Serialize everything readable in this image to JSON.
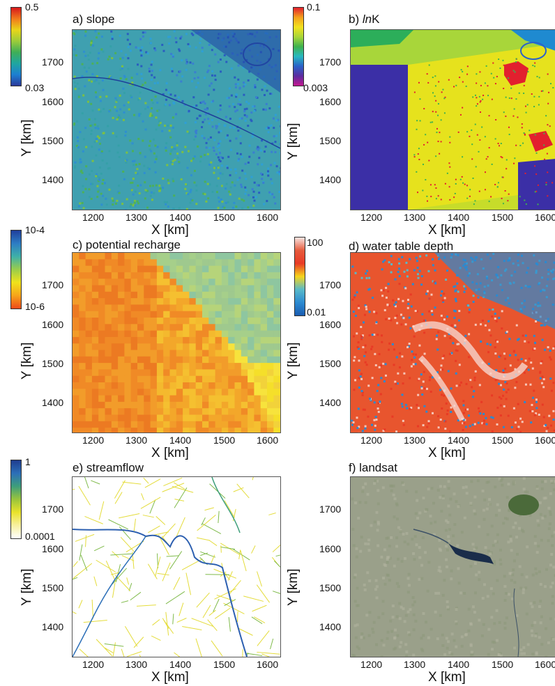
{
  "figure": {
    "panels": [
      {
        "id": "a",
        "title_prefix": "a) ",
        "title_main": "slope",
        "title_suffix": "",
        "cb_max": "0.5",
        "cb_min": "0.03",
        "xlabel": "X [km]",
        "ylabel": "Y [km]",
        "colors": {
          "bar": [
            "#d7191c",
            "#f17a1c",
            "#e8d51a",
            "#9ccc3a",
            "#3fae57",
            "#1fa6a0",
            "#1d7fd1",
            "#2b3a9b"
          ],
          "map_base": "#3fa0b0"
        }
      },
      {
        "id": "b",
        "title_prefix": "b) ",
        "title_main": "ln",
        "title_suffix": "K",
        "cb_max": "0.1",
        "cb_min": "0.003",
        "xlabel": "X [km]",
        "ylabel": "Y [km]",
        "colors": {
          "bar": [
            "#e2202e",
            "#f4a11c",
            "#f2e21e",
            "#a8d63a",
            "#3fb24e",
            "#28b8c0",
            "#2b62c8",
            "#5b2da0",
            "#c2188f"
          ],
          "map_base": "#c7dc2a"
        }
      },
      {
        "id": "c",
        "title_prefix": "c) ",
        "title_main": "potential recharge",
        "title_suffix": "",
        "cb_max": "10-4",
        "cb_min": "10-6",
        "xlabel": "X [km]",
        "ylabel": "Y [km]",
        "colors": {
          "bar": [
            "#1f3f9c",
            "#2d7dc4",
            "#3fb0a8",
            "#9acd4b",
            "#f0e21a",
            "#f6a41a",
            "#ed4a1a"
          ],
          "map_base": "#f3b427"
        }
      },
      {
        "id": "d",
        "title_prefix": "d) ",
        "title_main": "water table depth",
        "title_suffix": "",
        "cb_max": "100",
        "cb_min": "0.01",
        "xlabel": "X [km]",
        "ylabel": "Y [km]",
        "colors": {
          "bar": [
            "#f8e4e0",
            "#e65a3c",
            "#e83a25",
            "#f6d51a",
            "#58b9c8",
            "#2b8ad1",
            "#1a5cb0"
          ],
          "map_base": "#e8552e"
        }
      },
      {
        "id": "e",
        "title_prefix": "e) ",
        "title_main": "streamflow",
        "title_suffix": "",
        "cb_max": "1",
        "cb_min": "0.0001",
        "xlabel": "X [km]",
        "ylabel": "Y [km]",
        "colors": {
          "bar": [
            "#1f3d8f",
            "#2c6fb8",
            "#3e9e7a",
            "#9ac43c",
            "#e9e22a",
            "#f7f0a0",
            "#ffffff"
          ],
          "map_base": "#ffffff"
        }
      },
      {
        "id": "f",
        "title_prefix": "f) ",
        "title_main": "landsat",
        "title_suffix": "",
        "cb_max": "",
        "cb_min": "",
        "xlabel": "X [km]",
        "ylabel": "Y [km]",
        "colors": {
          "bar": [],
          "map_base": "#9aa08a"
        }
      }
    ],
    "xticks": [
      "1200",
      "1300",
      "1400",
      "1500",
      "1600"
    ],
    "yticks": [
      "1700",
      "1600",
      "1500",
      "1400"
    ]
  },
  "chart_data": [
    {
      "type": "heatmap",
      "title": "a) slope",
      "xlabel": "X [km]",
      "ylabel": "Y [km]",
      "xlim": [
        1110,
        1640
      ],
      "ylim": [
        1330,
        1780
      ],
      "colorbar_range": [
        0.03,
        0.5
      ]
    },
    {
      "type": "heatmap",
      "title": "b) lnK",
      "xlabel": "X [km]",
      "ylabel": "Y [km]",
      "xlim": [
        1110,
        1640
      ],
      "ylim": [
        1330,
        1780
      ],
      "colorbar_range": [
        0.003,
        0.1
      ]
    },
    {
      "type": "heatmap",
      "title": "c) potential recharge",
      "xlabel": "X [km]",
      "ylabel": "Y [km]",
      "xlim": [
        1110,
        1640
      ],
      "ylim": [
        1330,
        1780
      ],
      "colorbar_range": [
        "10-6",
        "10-4"
      ]
    },
    {
      "type": "heatmap",
      "title": "d) water table depth",
      "xlabel": "X [km]",
      "ylabel": "Y [km]",
      "xlim": [
        1110,
        1640
      ],
      "ylim": [
        1330,
        1780
      ],
      "colorbar_range": [
        0.01,
        100
      ]
    },
    {
      "type": "heatmap",
      "title": "e) streamflow",
      "xlabel": "X [km]",
      "ylabel": "Y [km]",
      "xlim": [
        1110,
        1640
      ],
      "ylim": [
        1330,
        1780
      ],
      "colorbar_range": [
        0.0001,
        1
      ]
    },
    {
      "type": "heatmap",
      "title": "f) landsat",
      "xlabel": "X [km]",
      "ylabel": "Y [km]",
      "xlim": [
        1110,
        1640
      ],
      "ylim": [
        1330,
        1780
      ]
    }
  ]
}
